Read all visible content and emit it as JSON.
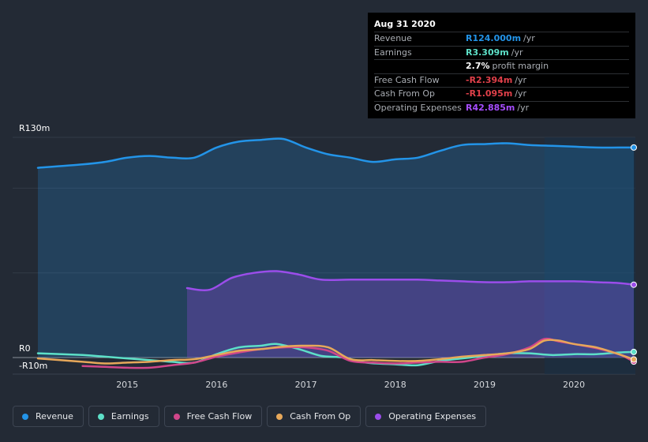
{
  "tooltip": {
    "date": "Aug 31 2020",
    "rows": [
      {
        "label": "Revenue",
        "value": "R124.000m",
        "unit": "/yr",
        "color": "#2394e8"
      },
      {
        "label": "Earnings",
        "value": "R3.309m",
        "unit": "/yr",
        "color": "#5de0c8"
      },
      {
        "label": "",
        "value": "2.7%",
        "unit": "profit margin",
        "color": "#ffffff"
      },
      {
        "label": "Free Cash Flow",
        "value": "-R2.394m",
        "unit": "/yr",
        "color": "#e0404a"
      },
      {
        "label": "Cash From Op",
        "value": "-R1.095m",
        "unit": "/yr",
        "color": "#e0404a"
      },
      {
        "label": "Operating Expenses",
        "value": "R42.885m",
        "unit": "/yr",
        "color": "#a64dff"
      }
    ]
  },
  "axes": {
    "y_top_label": "R130m",
    "y_zero_label": "R0",
    "y_bottom_label": "-R10m",
    "x_ticks": [
      "2015",
      "2016",
      "2017",
      "2018",
      "2019",
      "2020"
    ]
  },
  "legend": [
    {
      "label": "Revenue",
      "color": "#2394e8"
    },
    {
      "label": "Earnings",
      "color": "#5de0c8"
    },
    {
      "label": "Free Cash Flow",
      "color": "#d0468a"
    },
    {
      "label": "Cash From Op",
      "color": "#e7a85a"
    },
    {
      "label": "Operating Expenses",
      "color": "#9b4dea"
    }
  ],
  "chart_data": {
    "type": "line",
    "ylim": [
      -10,
      130
    ],
    "xlim": [
      2014.0,
      2020.67
    ],
    "x_ticks": [
      2015,
      2016,
      2017,
      2018,
      2019,
      2020
    ],
    "series": [
      {
        "name": "Revenue",
        "color": "#2394e8",
        "area": true,
        "points": [
          [
            2014.0,
            112
          ],
          [
            2014.5,
            114
          ],
          [
            2014.75,
            115.5
          ],
          [
            2015.0,
            118
          ],
          [
            2015.25,
            119
          ],
          [
            2015.5,
            118
          ],
          [
            2015.75,
            118
          ],
          [
            2016.0,
            124
          ],
          [
            2016.25,
            127.5
          ],
          [
            2016.5,
            128.5
          ],
          [
            2016.75,
            129
          ],
          [
            2017.0,
            124
          ],
          [
            2017.25,
            120
          ],
          [
            2017.5,
            118
          ],
          [
            2017.75,
            115.5
          ],
          [
            2018.0,
            117
          ],
          [
            2018.25,
            118
          ],
          [
            2018.5,
            122
          ],
          [
            2018.75,
            125.5
          ],
          [
            2019.0,
            126
          ],
          [
            2019.25,
            126.5
          ],
          [
            2019.5,
            125.5
          ],
          [
            2019.75,
            125
          ],
          [
            2020.0,
            124.5
          ],
          [
            2020.25,
            124
          ],
          [
            2020.5,
            124
          ],
          [
            2020.67,
            124
          ]
        ]
      },
      {
        "name": "Operating Expenses",
        "color": "#9b4dea",
        "area": true,
        "points": [
          [
            2015.67,
            41
          ],
          [
            2015.92,
            40
          ],
          [
            2016.17,
            47
          ],
          [
            2016.42,
            50
          ],
          [
            2016.67,
            51
          ],
          [
            2016.92,
            49
          ],
          [
            2017.17,
            46
          ],
          [
            2017.5,
            46
          ],
          [
            2018.0,
            46
          ],
          [
            2018.25,
            46
          ],
          [
            2018.5,
            45.5
          ],
          [
            2018.75,
            45
          ],
          [
            2019.0,
            44.5
          ],
          [
            2019.25,
            44.5
          ],
          [
            2019.5,
            45
          ],
          [
            2019.75,
            45
          ],
          [
            2020.0,
            45
          ],
          [
            2020.25,
            44.5
          ],
          [
            2020.5,
            44
          ],
          [
            2020.67,
            43
          ]
        ]
      },
      {
        "name": "Earnings",
        "color": "#5de0c8",
        "area": false,
        "points": [
          [
            2014.0,
            2.5
          ],
          [
            2014.5,
            1.5
          ],
          [
            2014.75,
            0.5
          ],
          [
            2015.0,
            -0.5
          ],
          [
            2015.25,
            -1.5
          ],
          [
            2015.5,
            -2.5
          ],
          [
            2015.75,
            -3
          ],
          [
            2016.0,
            2
          ],
          [
            2016.25,
            6
          ],
          [
            2016.5,
            7
          ],
          [
            2016.67,
            8
          ],
          [
            2016.92,
            5
          ],
          [
            2017.17,
            1
          ],
          [
            2017.42,
            0
          ],
          [
            2017.67,
            -3
          ],
          [
            2018.0,
            -4
          ],
          [
            2018.25,
            -4.5
          ],
          [
            2018.5,
            -2
          ],
          [
            2018.75,
            -0.5
          ],
          [
            2019.0,
            1
          ],
          [
            2019.25,
            2.5
          ],
          [
            2019.5,
            2.5
          ],
          [
            2019.75,
            1.5
          ],
          [
            2020.0,
            2
          ],
          [
            2020.25,
            2
          ],
          [
            2020.5,
            3
          ],
          [
            2020.67,
            3.3
          ]
        ]
      },
      {
        "name": "Free Cash Flow",
        "color": "#d0468a",
        "area": false,
        "points": [
          [
            2014.5,
            -5
          ],
          [
            2014.75,
            -5.5
          ],
          [
            2015.0,
            -6
          ],
          [
            2015.25,
            -6
          ],
          [
            2015.5,
            -4.5
          ],
          [
            2015.75,
            -3
          ],
          [
            2016.0,
            0.5
          ],
          [
            2016.25,
            3
          ],
          [
            2016.5,
            5
          ],
          [
            2016.75,
            6
          ],
          [
            2017.0,
            6
          ],
          [
            2017.25,
            4
          ],
          [
            2017.5,
            -2
          ],
          [
            2017.75,
            -3
          ],
          [
            2018.0,
            -3.5
          ],
          [
            2018.25,
            -3
          ],
          [
            2018.5,
            -2.5
          ],
          [
            2018.75,
            -2.5
          ],
          [
            2019.0,
            0
          ],
          [
            2019.25,
            2
          ],
          [
            2019.5,
            6
          ],
          [
            2019.67,
            11
          ],
          [
            2019.83,
            9.5
          ],
          [
            2020.0,
            8
          ],
          [
            2020.25,
            5.5
          ],
          [
            2020.5,
            2
          ],
          [
            2020.67,
            -2.4
          ]
        ]
      },
      {
        "name": "Cash From Op",
        "color": "#e7a85a",
        "area": false,
        "points": [
          [
            2014.0,
            -0.5
          ],
          [
            2014.5,
            -2.5
          ],
          [
            2014.75,
            -3.5
          ],
          [
            2015.0,
            -3
          ],
          [
            2015.25,
            -2.5
          ],
          [
            2015.5,
            -1.5
          ],
          [
            2015.75,
            -1
          ],
          [
            2016.0,
            1.5
          ],
          [
            2016.25,
            4
          ],
          [
            2016.5,
            5
          ],
          [
            2016.75,
            6.5
          ],
          [
            2017.0,
            7
          ],
          [
            2017.25,
            6
          ],
          [
            2017.5,
            -1
          ],
          [
            2017.75,
            -1.5
          ],
          [
            2018.0,
            -2
          ],
          [
            2018.25,
            -2
          ],
          [
            2018.5,
            -1
          ],
          [
            2018.75,
            0.5
          ],
          [
            2019.0,
            1.5
          ],
          [
            2019.25,
            2.5
          ],
          [
            2019.5,
            5
          ],
          [
            2019.67,
            10
          ],
          [
            2019.83,
            10
          ],
          [
            2020.0,
            8
          ],
          [
            2020.25,
            6
          ],
          [
            2020.5,
            2
          ],
          [
            2020.67,
            -1.1
          ]
        ]
      }
    ]
  }
}
